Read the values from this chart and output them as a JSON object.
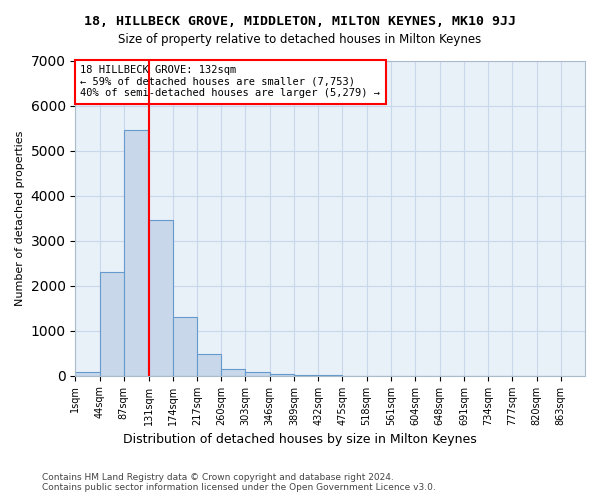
{
  "title": "18, HILLBECK GROVE, MIDDLETON, MILTON KEYNES, MK10 9JJ",
  "subtitle": "Size of property relative to detached houses in Milton Keynes",
  "xlabel": "Distribution of detached houses by size in Milton Keynes",
  "ylabel": "Number of detached properties",
  "footer1": "Contains HM Land Registry data © Crown copyright and database right 2024.",
  "footer2": "Contains public sector information licensed under the Open Government Licence v3.0.",
  "bin_edges": [
    1,
    44,
    87,
    131,
    174,
    217,
    260,
    303,
    346,
    389,
    432,
    475,
    518,
    561,
    604,
    648,
    691,
    734,
    777,
    820,
    863
  ],
  "bar_heights": [
    80,
    2300,
    5450,
    3450,
    1300,
    480,
    160,
    90,
    40,
    20,
    10,
    5,
    3,
    2,
    1,
    1,
    0,
    0,
    0,
    0
  ],
  "bar_color": "#c8d8ea",
  "bar_edge_color": "#6699cc",
  "grid_color": "#c8d8ea",
  "background_color": "#e8f0f8",
  "red_line_x": 131,
  "annotation_line1": "18 HILLBECK GROVE: 132sqm",
  "annotation_line2": "← 59% of detached houses are smaller (7,753)",
  "annotation_line3": "40% of semi-detached houses are larger (5,279) →",
  "annotation_box_color": "white",
  "annotation_box_edge": "red",
  "ylim": [
    0,
    7000
  ],
  "tick_labels": [
    "1sqm",
    "44sqm",
    "87sqm",
    "131sqm",
    "174sqm",
    "217sqm",
    "260sqm",
    "303sqm",
    "346sqm",
    "389sqm",
    "432sqm",
    "475sqm",
    "518sqm",
    "561sqm",
    "604sqm",
    "648sqm",
    "691sqm",
    "734sqm",
    "777sqm",
    "820sqm",
    "863sqm"
  ]
}
